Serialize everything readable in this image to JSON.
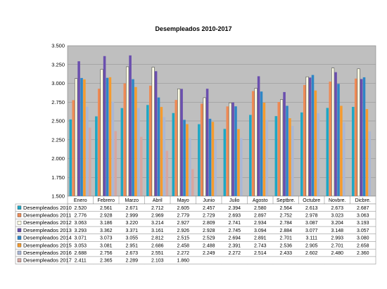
{
  "chart_data": {
    "type": "bar",
    "title": "Desempleados 2010-2017",
    "xlabel": "",
    "ylabel": "",
    "ylim": [
      1500,
      3500
    ],
    "yticks": [
      1500,
      1750,
      2000,
      2250,
      2500,
      2750,
      3000,
      3250,
      3500
    ],
    "ytick_labels": [
      "1.500",
      "1.750",
      "2.000",
      "2.250",
      "2.500",
      "2.750",
      "3.000",
      "3.250",
      "3.500"
    ],
    "grid": true,
    "legend": "data-table-left",
    "categories": [
      "Enero",
      "Febrero",
      "Marzo",
      "Abril",
      "Mayo",
      "Junio",
      "Julio",
      "Agosto",
      "Septbre.",
      "Octubre",
      "Novbre.",
      "Dicbre."
    ],
    "series": [
      {
        "name": "Desempleados 2010",
        "color": "#1fa7c4",
        "values": [
          2520,
          2561,
          2671,
          2712,
          2605,
          2457,
          2394,
          2580,
          2564,
          2613,
          2673,
          2687
        ],
        "labels": [
          "2.520",
          "2.561",
          "2.671",
          "2.712",
          "2.605",
          "2.457",
          "2.394",
          "2.580",
          "2.564",
          "2.613",
          "2.673",
          "2.687"
        ]
      },
      {
        "name": "Desempleados 2011",
        "color": "#ee8a55",
        "values": [
          2776,
          2928,
          2999,
          2969,
          2779,
          2729,
          2693,
          2897,
          2752,
          2978,
          3023,
          3063
        ],
        "labels": [
          "2.776",
          "2.928",
          "2.999",
          "2.969",
          "2.779",
          "2.729",
          "2.693",
          "2.897",
          "2.752",
          "2.978",
          "3.023",
          "3.063"
        ]
      },
      {
        "name": "Desempleados 2012",
        "color": "#ffffe6",
        "values": [
          3063,
          3186,
          3220,
          3214,
          2927,
          2809,
          2741,
          2934,
          2784,
          3087,
          3204,
          3193
        ],
        "labels": [
          "3.063",
          "3.186",
          "3.220",
          "3.214",
          "2.927",
          "2.809",
          "2.741",
          "2.934",
          "2.784",
          "3.087",
          "3.204",
          "3.193"
        ]
      },
      {
        "name": "Desempleados 2013",
        "color": "#6a4fae",
        "values": [
          3293,
          3362,
          3371,
          3161,
          2926,
          2928,
          2745,
          3094,
          2884,
          3077,
          3148,
          3057
        ],
        "labels": [
          "3.293",
          "3.362",
          "3.371",
          "3.161",
          "2.926",
          "2.928",
          "2.745",
          "3.094",
          "2.884",
          "3.077",
          "3.148",
          "3.057"
        ]
      },
      {
        "name": "Desempleados 2014",
        "color": "#2e86c6",
        "values": [
          3071,
          3073,
          3055,
          2812,
          2515,
          2529,
          2694,
          2891,
          2701,
          3111,
          2993,
          3080
        ],
        "labels": [
          "3.071",
          "3.073",
          "3.055",
          "2.812",
          "2.515",
          "2.529",
          "2.694",
          "2.891",
          "2.701",
          "3.111",
          "2.993",
          "3.080"
        ]
      },
      {
        "name": "Desempleados 2015",
        "color": "#f59b2e",
        "values": [
          3053,
          3081,
          2951,
          2686,
          2458,
          2488,
          2391,
          2743,
          2536,
          2905,
          2701,
          2658
        ],
        "labels": [
          "3.053",
          "3.081",
          "2.951",
          "2.686",
          "2.458",
          "2.488",
          "2.391",
          "2.743",
          "2.536",
          "2.905",
          "2.701",
          "2.658"
        ]
      },
      {
        "name": "Desempleados 2016",
        "color": "#a9b7d6",
        "values": [
          2688,
          2756,
          2673,
          2551,
          2272,
          2249,
          2272,
          2514,
          2433,
          2602,
          2480,
          2360
        ],
        "labels": [
          "2.688",
          "2.756",
          "2.673",
          "2.551",
          "2.272",
          "2.249",
          "2.272",
          "2.514",
          "2.433",
          "2.602",
          "2.480",
          "2.360"
        ]
      },
      {
        "name": "Desempleados 2017",
        "color": "#d7a6a0",
        "values": [
          2411,
          2365,
          2289,
          2103,
          1860,
          null,
          null,
          null,
          null,
          null,
          null,
          null
        ],
        "labels": [
          "2.411",
          "2.365",
          "2.289",
          "2.103",
          "1.860",
          "",
          "",
          "",
          "",
          "",
          "",
          ""
        ]
      }
    ]
  }
}
